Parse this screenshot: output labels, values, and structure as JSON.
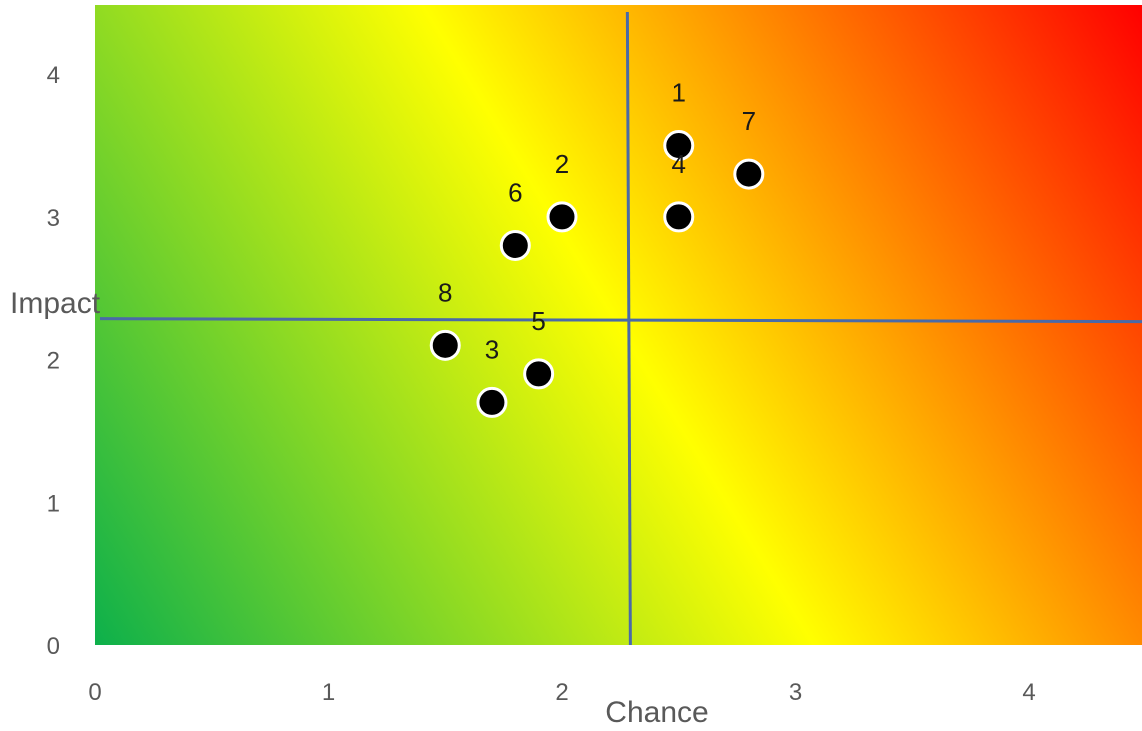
{
  "chart_data": {
    "type": "scatter",
    "title": "",
    "xlabel": "Chance",
    "ylabel": "Impact",
    "xlim": [
      0,
      4.5
    ],
    "ylim": [
      0,
      4.5
    ],
    "x_ticks": [
      "0",
      "1",
      "2",
      "3",
      "4"
    ],
    "y_ticks": [
      "0",
      "1",
      "2",
      "3",
      "4"
    ],
    "grid": false,
    "legend": "none",
    "background": "gradient from green (low chance, low impact) through yellow to red (high chance, high impact)",
    "gradient_colors": [
      "#0db04b",
      "#ffff00",
      "#ff0000"
    ],
    "marker_color": "#000000",
    "quadrant_lines": {
      "x": 2.28,
      "y": 2.28,
      "color": "#4a6aa8"
    },
    "points": [
      {
        "label": "1",
        "x": 2.5,
        "y": 3.5
      },
      {
        "label": "2",
        "x": 2.0,
        "y": 3.0
      },
      {
        "label": "3",
        "x": 1.7,
        "y": 1.7
      },
      {
        "label": "4",
        "x": 2.5,
        "y": 3.0
      },
      {
        "label": "5",
        "x": 1.9,
        "y": 1.9
      },
      {
        "label": "6",
        "x": 1.8,
        "y": 2.8
      },
      {
        "label": "7",
        "x": 2.8,
        "y": 3.3
      },
      {
        "label": "8",
        "x": 1.5,
        "y": 2.1
      }
    ]
  }
}
